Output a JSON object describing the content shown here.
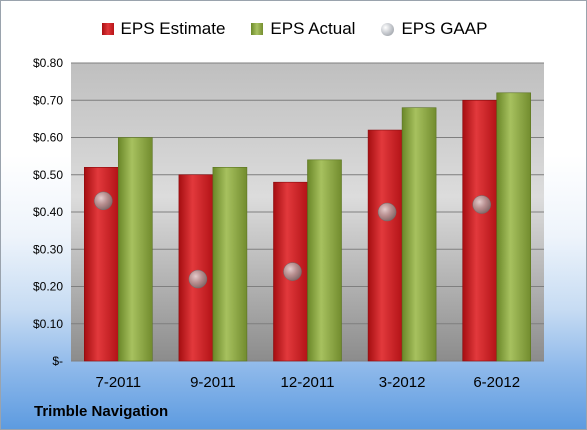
{
  "company": "Trimble Navigation",
  "legend": {
    "estimate": "EPS Estimate",
    "actual": "EPS Actual",
    "gaap": "EPS GAAP"
  },
  "colors": {
    "estimate": "#d42a2d",
    "actual": "#93b24a",
    "gaap": "#b7bbc1"
  },
  "chart_data": {
    "type": "bar",
    "categories": [
      "7-2011",
      "9-2011",
      "12-2011",
      "3-2012",
      "6-2012"
    ],
    "series": [
      {
        "name": "EPS Estimate",
        "values": [
          0.52,
          0.5,
          0.48,
          0.62,
          0.7
        ]
      },
      {
        "name": "EPS Actual",
        "values": [
          0.6,
          0.52,
          0.54,
          0.68,
          0.72
        ]
      },
      {
        "name": "EPS GAAP",
        "values": [
          0.43,
          0.22,
          0.24,
          0.4,
          0.42
        ],
        "style": "marker"
      }
    ],
    "yticks": [
      "$-",
      "$0.10",
      "$0.20",
      "$0.30",
      "$0.40",
      "$0.50",
      "$0.60",
      "$0.70",
      "$0.80"
    ],
    "ylim": [
      0,
      0.8
    ],
    "grid": true,
    "legend": "top"
  }
}
